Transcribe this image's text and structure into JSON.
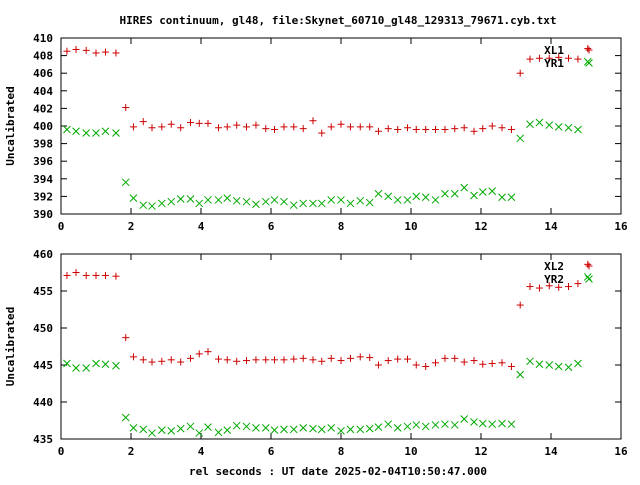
{
  "chart_data": [
    {
      "type": "scatter",
      "title": "HIRES continuum, gl48, file:Skynet_60710_gl48_129313_79671.cyb.txt",
      "xlabel": "",
      "ylabel": "Uncalibrated",
      "xlim": [
        0,
        16
      ],
      "ylim": [
        390,
        410
      ],
      "xticks": [
        0,
        2,
        4,
        6,
        8,
        10,
        12,
        14,
        16
      ],
      "yticks": [
        390,
        392,
        394,
        396,
        398,
        400,
        402,
        404,
        406,
        408,
        410
      ],
      "grid": false,
      "legend_position": "top-right",
      "series": [
        {
          "name": "XL1",
          "marker": "plus",
          "color": "#cc0000",
          "points": [
            [
              0.17,
              408.5
            ],
            [
              0.43,
              408.7
            ],
            [
              0.72,
              408.6
            ],
            [
              1.0,
              408.3
            ],
            [
              1.27,
              408.4
            ],
            [
              1.57,
              408.3
            ],
            [
              1.85,
              402.1
            ],
            [
              2.07,
              399.9
            ],
            [
              2.35,
              400.5
            ],
            [
              2.6,
              399.8
            ],
            [
              2.88,
              399.9
            ],
            [
              3.15,
              400.2
            ],
            [
              3.42,
              399.8
            ],
            [
              3.7,
              400.4
            ],
            [
              3.95,
              400.3
            ],
            [
              4.2,
              400.3
            ],
            [
              4.5,
              399.8
            ],
            [
              4.75,
              399.9
            ],
            [
              5.02,
              400.1
            ],
            [
              5.3,
              399.9
            ],
            [
              5.57,
              400.1
            ],
            [
              5.85,
              399.7
            ],
            [
              6.1,
              399.6
            ],
            [
              6.37,
              399.9
            ],
            [
              6.65,
              399.9
            ],
            [
              6.92,
              399.7
            ],
            [
              7.2,
              400.6
            ],
            [
              7.45,
              399.2
            ],
            [
              7.72,
              399.9
            ],
            [
              8.0,
              400.2
            ],
            [
              8.27,
              399.9
            ],
            [
              8.55,
              399.9
            ],
            [
              8.82,
              399.9
            ],
            [
              9.07,
              399.4
            ],
            [
              9.35,
              399.7
            ],
            [
              9.62,
              399.6
            ],
            [
              9.9,
              399.8
            ],
            [
              10.15,
              399.6
            ],
            [
              10.42,
              399.6
            ],
            [
              10.7,
              399.6
            ],
            [
              10.97,
              399.6
            ],
            [
              11.25,
              399.7
            ],
            [
              11.52,
              399.8
            ],
            [
              11.8,
              399.4
            ],
            [
              12.05,
              399.7
            ],
            [
              12.32,
              400.0
            ],
            [
              12.6,
              399.8
            ],
            [
              12.87,
              399.6
            ],
            [
              13.12,
              406.0
            ],
            [
              13.4,
              407.6
            ],
            [
              13.67,
              407.7
            ],
            [
              13.95,
              407.7
            ],
            [
              14.22,
              407.8
            ],
            [
              14.5,
              407.7
            ],
            [
              14.77,
              407.6
            ],
            [
              15.05,
              408.8
            ]
          ]
        },
        {
          "name": "YR1",
          "marker": "cross",
          "color": "#00aa00",
          "points": [
            [
              0.17,
              399.6
            ],
            [
              0.43,
              399.4
            ],
            [
              0.72,
              399.2
            ],
            [
              1.0,
              399.2
            ],
            [
              1.27,
              399.4
            ],
            [
              1.57,
              399.2
            ],
            [
              1.85,
              393.6
            ],
            [
              2.07,
              391.8
            ],
            [
              2.35,
              391.0
            ],
            [
              2.6,
              390.9
            ],
            [
              2.88,
              391.2
            ],
            [
              3.15,
              391.4
            ],
            [
              3.42,
              391.7
            ],
            [
              3.7,
              391.7
            ],
            [
              3.95,
              391.2
            ],
            [
              4.2,
              391.6
            ],
            [
              4.5,
              391.6
            ],
            [
              4.75,
              391.8
            ],
            [
              5.02,
              391.5
            ],
            [
              5.3,
              391.4
            ],
            [
              5.57,
              391.1
            ],
            [
              5.85,
              391.4
            ],
            [
              6.1,
              391.6
            ],
            [
              6.37,
              391.4
            ],
            [
              6.65,
              391.0
            ],
            [
              6.92,
              391.2
            ],
            [
              7.2,
              391.2
            ],
            [
              7.45,
              391.2
            ],
            [
              7.72,
              391.6
            ],
            [
              8.0,
              391.6
            ],
            [
              8.27,
              391.2
            ],
            [
              8.55,
              391.5
            ],
            [
              8.82,
              391.3
            ],
            [
              9.07,
              392.3
            ],
            [
              9.35,
              392.0
            ],
            [
              9.62,
              391.6
            ],
            [
              9.9,
              391.6
            ],
            [
              10.15,
              392.0
            ],
            [
              10.42,
              391.9
            ],
            [
              10.7,
              391.6
            ],
            [
              10.97,
              392.3
            ],
            [
              11.25,
              392.3
            ],
            [
              11.52,
              393.0
            ],
            [
              11.8,
              392.1
            ],
            [
              12.05,
              392.5
            ],
            [
              12.32,
              392.6
            ],
            [
              12.6,
              391.9
            ],
            [
              12.87,
              391.9
            ],
            [
              13.12,
              398.6
            ],
            [
              13.4,
              400.2
            ],
            [
              13.67,
              400.4
            ],
            [
              13.95,
              400.1
            ],
            [
              14.22,
              399.9
            ],
            [
              14.5,
              399.8
            ],
            [
              14.77,
              399.6
            ],
            [
              15.05,
              407.3
            ]
          ]
        }
      ]
    },
    {
      "type": "scatter",
      "title": "",
      "xlabel": "rel seconds : UT date 2025-02-04T10:50:47.000",
      "ylabel": "Uncalibrated",
      "xlim": [
        0,
        16
      ],
      "ylim": [
        435,
        460
      ],
      "xticks": [
        0,
        2,
        4,
        6,
        8,
        10,
        12,
        14,
        16
      ],
      "yticks": [
        435,
        440,
        445,
        450,
        455,
        460
      ],
      "grid": false,
      "legend_position": "top-right",
      "series": [
        {
          "name": "XL2",
          "marker": "plus",
          "color": "#cc0000",
          "points": [
            [
              0.17,
              457.1
            ],
            [
              0.43,
              457.5
            ],
            [
              0.72,
              457.1
            ],
            [
              1.0,
              457.1
            ],
            [
              1.27,
              457.1
            ],
            [
              1.57,
              457.0
            ],
            [
              1.85,
              448.7
            ],
            [
              2.07,
              446.1
            ],
            [
              2.35,
              445.7
            ],
            [
              2.6,
              445.4
            ],
            [
              2.88,
              445.5
            ],
            [
              3.15,
              445.7
            ],
            [
              3.42,
              445.4
            ],
            [
              3.7,
              445.9
            ],
            [
              3.95,
              446.5
            ],
            [
              4.2,
              446.8
            ],
            [
              4.5,
              445.8
            ],
            [
              4.75,
              445.7
            ],
            [
              5.02,
              445.5
            ],
            [
              5.3,
              445.6
            ],
            [
              5.57,
              445.7
            ],
            [
              5.85,
              445.7
            ],
            [
              6.1,
              445.7
            ],
            [
              6.37,
              445.7
            ],
            [
              6.65,
              445.8
            ],
            [
              6.92,
              445.9
            ],
            [
              7.2,
              445.7
            ],
            [
              7.45,
              445.5
            ],
            [
              7.72,
              445.9
            ],
            [
              8.0,
              445.6
            ],
            [
              8.27,
              445.9
            ],
            [
              8.55,
              446.1
            ],
            [
              8.82,
              446.0
            ],
            [
              9.07,
              445.0
            ],
            [
              9.35,
              445.6
            ],
            [
              9.62,
              445.8
            ],
            [
              9.9,
              445.8
            ],
            [
              10.15,
              445.0
            ],
            [
              10.42,
              444.8
            ],
            [
              10.7,
              445.3
            ],
            [
              10.97,
              445.9
            ],
            [
              11.25,
              445.9
            ],
            [
              11.52,
              445.4
            ],
            [
              11.8,
              445.6
            ],
            [
              12.05,
              445.1
            ],
            [
              12.32,
              445.2
            ],
            [
              12.6,
              445.3
            ],
            [
              12.87,
              444.8
            ],
            [
              13.12,
              453.1
            ],
            [
              13.4,
              455.6
            ],
            [
              13.67,
              455.4
            ],
            [
              13.95,
              455.7
            ],
            [
              14.22,
              455.5
            ],
            [
              14.5,
              455.6
            ],
            [
              14.77,
              456.0
            ],
            [
              15.05,
              458.6
            ]
          ]
        },
        {
          "name": "YR2",
          "marker": "cross",
          "color": "#00aa00",
          "points": [
            [
              0.17,
              445.2
            ],
            [
              0.43,
              444.6
            ],
            [
              0.72,
              444.6
            ],
            [
              1.0,
              445.2
            ],
            [
              1.27,
              445.1
            ],
            [
              1.57,
              444.9
            ],
            [
              1.85,
              437.9
            ],
            [
              2.07,
              436.5
            ],
            [
              2.35,
              436.3
            ],
            [
              2.6,
              435.8
            ],
            [
              2.88,
              436.2
            ],
            [
              3.15,
              436.1
            ],
            [
              3.42,
              436.4
            ],
            [
              3.7,
              436.7
            ],
            [
              3.95,
              435.8
            ],
            [
              4.2,
              436.6
            ],
            [
              4.5,
              435.9
            ],
            [
              4.75,
              436.2
            ],
            [
              5.02,
              436.8
            ],
            [
              5.3,
              436.7
            ],
            [
              5.57,
              436.5
            ],
            [
              5.85,
              436.5
            ],
            [
              6.1,
              436.2
            ],
            [
              6.37,
              436.3
            ],
            [
              6.65,
              436.3
            ],
            [
              6.92,
              436.5
            ],
            [
              7.2,
              436.4
            ],
            [
              7.45,
              436.3
            ],
            [
              7.72,
              436.5
            ],
            [
              8.0,
              436.1
            ],
            [
              8.27,
              436.3
            ],
            [
              8.55,
              436.3
            ],
            [
              8.82,
              436.4
            ],
            [
              9.07,
              436.6
            ],
            [
              9.35,
              437.0
            ],
            [
              9.62,
              436.5
            ],
            [
              9.9,
              436.7
            ],
            [
              10.15,
              436.9
            ],
            [
              10.42,
              436.7
            ],
            [
              10.7,
              436.9
            ],
            [
              10.97,
              437.0
            ],
            [
              11.25,
              436.9
            ],
            [
              11.52,
              437.7
            ],
            [
              11.8,
              437.3
            ],
            [
              12.05,
              437.1
            ],
            [
              12.32,
              437.0
            ],
            [
              12.6,
              437.1
            ],
            [
              12.87,
              437.0
            ],
            [
              13.12,
              443.7
            ],
            [
              13.4,
              445.5
            ],
            [
              13.67,
              445.1
            ],
            [
              13.95,
              445.0
            ],
            [
              14.22,
              444.8
            ],
            [
              14.5,
              444.7
            ],
            [
              14.77,
              445.2
            ],
            [
              15.05,
              456.9
            ]
          ]
        }
      ]
    }
  ]
}
